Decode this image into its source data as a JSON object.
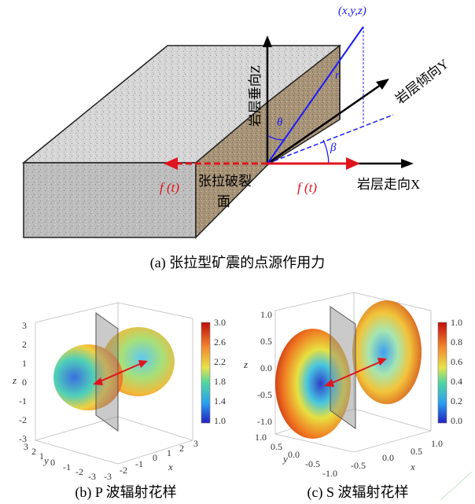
{
  "panel_a": {
    "point_label": "(x,y,z)",
    "r_label": "r",
    "theta_label": "θ",
    "beta_label": "β",
    "axis_z_label": "岩层垂向Z",
    "axis_y_label": "岩层倾向Y",
    "axis_x_label": "岩层走向X",
    "force_left_label": "f (t)",
    "force_right_label": "f (t)",
    "fracture_label_line1": "张拉破裂",
    "fracture_label_line2": "面",
    "caption": "(a)  张拉型矿震的点源作用力"
  },
  "panel_b": {
    "caption": "(b) P 波辐射花样",
    "z_axis_label": "z",
    "x_axis_label": "x",
    "y_axis_label": "y",
    "z_ticks": [
      "3",
      "2",
      "1",
      "0",
      "-1",
      "-2",
      "-3"
    ],
    "y_ticks": [
      "3",
      "2",
      "1",
      "0",
      "-1",
      "-2",
      "-3"
    ],
    "x_ticks": [
      "-3",
      "-2",
      "-1",
      "0",
      "1",
      "2",
      "3"
    ],
    "colorbar_ticks": [
      "3.0",
      "2.6",
      "2.2",
      "1.8",
      "1.4",
      "1.0"
    ]
  },
  "panel_c": {
    "caption": "(c) S 波辐射花样",
    "z_axis_label": "z",
    "x_axis_label": "x",
    "y_axis_label": "y",
    "z_ticks": [
      "1.0",
      "0.5",
      "0.0",
      "-0.5",
      "-1.0"
    ],
    "y_ticks": [
      "1.0",
      "0.5",
      "0.0",
      "-0.5"
    ],
    "x_ticks": [
      "-1.0",
      "-0.5",
      "0.0",
      "0.5",
      "1.0"
    ],
    "colorbar_ticks": [
      "1.0",
      "0.8",
      "0.6",
      "0.4",
      "0.2",
      "0.0"
    ]
  },
  "colors": {
    "vector_blue": "#1a1aff",
    "force_red": "#e0141e",
    "axis_black": "#000000"
  }
}
